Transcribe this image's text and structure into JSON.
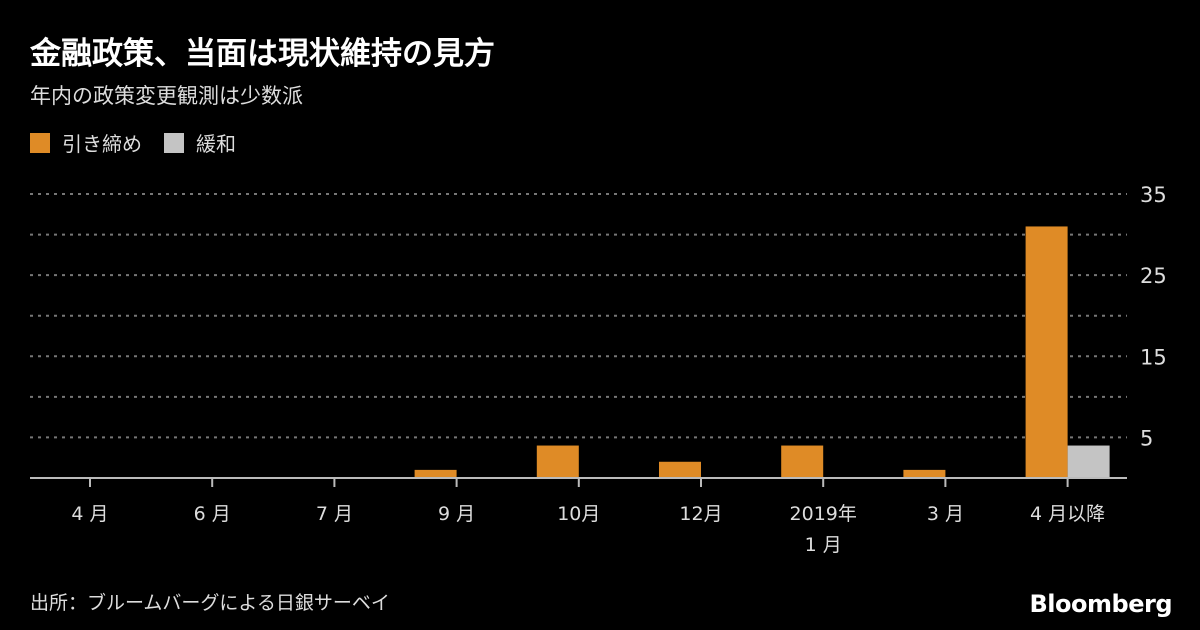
{
  "title": "金融政策、当面は現状維持の見方",
  "subtitle": "年内の政策変更観測は少数派",
  "source": "出所：ブルームバーグによる日銀サーベイ",
  "logo": "Bloomberg",
  "colors": {
    "tightening": "#df8b26",
    "easing": "#c4c4c4",
    "background": "#000000"
  },
  "chart_data": {
    "type": "bar",
    "title": "金融政策、当面は現状維持の見方",
    "subtitle": "年内の政策変更観測は少数派",
    "categories": [
      "4 月",
      "6 月",
      "7 月",
      "9 月",
      "10月",
      "12月",
      "2019年\n1 月",
      "3 月",
      "4 月以降"
    ],
    "series": [
      {
        "name": "引き締め",
        "color": "#df8b26",
        "values": [
          0,
          0,
          0,
          1,
          4,
          2,
          4,
          1,
          31
        ]
      },
      {
        "name": "緩和",
        "color": "#c4c4c4",
        "values": [
          0,
          0,
          0,
          0,
          0,
          0,
          0,
          0,
          4
        ]
      }
    ],
    "ylim": [
      0,
      35
    ],
    "yticks": [
      5,
      15,
      25,
      35
    ],
    "gridlines": [
      0,
      5,
      10,
      15,
      20,
      25,
      30,
      35
    ],
    "grid": true,
    "yaxis_side": "right",
    "legend_position": "top-left"
  }
}
